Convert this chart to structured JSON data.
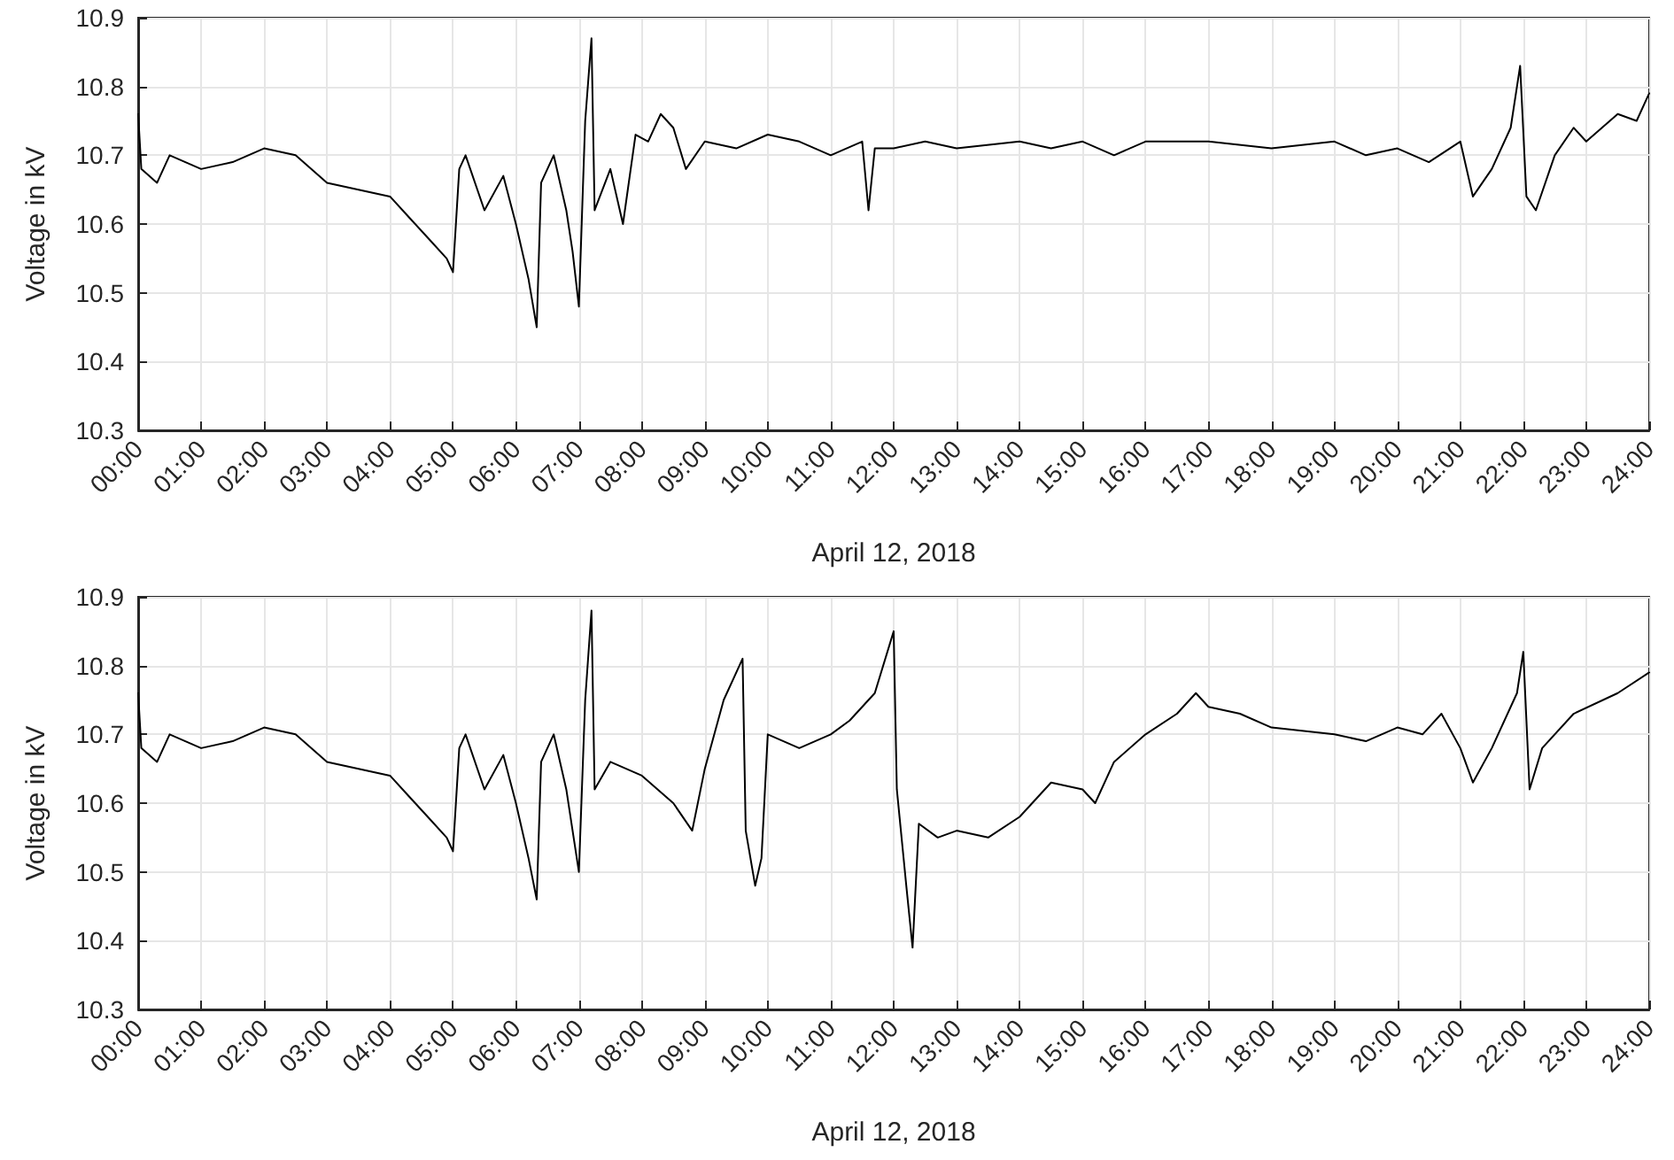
{
  "chart_data": [
    {
      "type": "line",
      "xlabel": "April 12, 2018",
      "ylabel": "Voltage in kV",
      "xlim": [
        0,
        24
      ],
      "ylim": [
        10.3,
        10.9
      ],
      "yticks": [
        10.3,
        10.4,
        10.5,
        10.6,
        10.7,
        10.8,
        10.9
      ],
      "xticks": [
        {
          "value": 0,
          "label": "00:00"
        },
        {
          "value": 1,
          "label": "01:00"
        },
        {
          "value": 2,
          "label": "02:00"
        },
        {
          "value": 3,
          "label": "03:00"
        },
        {
          "value": 4,
          "label": "04:00"
        },
        {
          "value": 5,
          "label": "05:00"
        },
        {
          "value": 6,
          "label": "06:00"
        },
        {
          "value": 7,
          "label": "07:00"
        },
        {
          "value": 8,
          "label": "08:00"
        },
        {
          "value": 9,
          "label": "09:00"
        },
        {
          "value": 10,
          "label": "10:00"
        },
        {
          "value": 11,
          "label": "11:00"
        },
        {
          "value": 12,
          "label": "12:00"
        },
        {
          "value": 13,
          "label": "13:00"
        },
        {
          "value": 14,
          "label": "14:00"
        },
        {
          "value": 15,
          "label": "15:00"
        },
        {
          "value": 16,
          "label": "16:00"
        },
        {
          "value": 17,
          "label": "17:00"
        },
        {
          "value": 18,
          "label": "18:00"
        },
        {
          "value": 19,
          "label": "19:00"
        },
        {
          "value": 20,
          "label": "20:00"
        },
        {
          "value": 21,
          "label": "21:00"
        },
        {
          "value": 22,
          "label": "22:00"
        },
        {
          "value": 23,
          "label": "23:00"
        },
        {
          "value": 24,
          "label": "24:00"
        }
      ],
      "grid": true,
      "marker": "none",
      "line_style": "solid",
      "series": [
        {
          "color": "#000000",
          "x": [
            0,
            0.05,
            0.3,
            0.5,
            1,
            1.5,
            2,
            2.5,
            3,
            3.5,
            4,
            4.3,
            4.6,
            4.9,
            5.0,
            5.1,
            5.2,
            5.5,
            5.8,
            6.0,
            6.2,
            6.33,
            6.4,
            6.6,
            6.8,
            6.9,
            7.0,
            7.1,
            7.2,
            7.25,
            7.5,
            7.7,
            7.9,
            8.1,
            8.3,
            8.5,
            8.7,
            9,
            9.5,
            10,
            10.5,
            11,
            11.5,
            11.6,
            11.7,
            12,
            12.5,
            13,
            14,
            14.5,
            15,
            15.5,
            16,
            17,
            18,
            19,
            19.5,
            20,
            20.5,
            21,
            21.2,
            21.5,
            21.8,
            21.95,
            22.05,
            22.2,
            22.5,
            22.8,
            23,
            23.5,
            23.8,
            24
          ],
          "values": [
            10.76,
            10.68,
            10.66,
            10.7,
            10.68,
            10.69,
            10.71,
            10.7,
            10.66,
            10.65,
            10.64,
            10.61,
            10.58,
            10.55,
            10.53,
            10.68,
            10.7,
            10.62,
            10.67,
            10.6,
            10.52,
            10.45,
            10.66,
            10.7,
            10.62,
            10.56,
            10.48,
            10.75,
            10.87,
            10.62,
            10.68,
            10.6,
            10.73,
            10.72,
            10.76,
            10.74,
            10.68,
            10.72,
            10.71,
            10.73,
            10.72,
            10.7,
            10.72,
            10.62,
            10.71,
            10.71,
            10.72,
            10.71,
            10.72,
            10.71,
            10.72,
            10.7,
            10.72,
            10.72,
            10.71,
            10.72,
            10.7,
            10.71,
            10.69,
            10.72,
            10.64,
            10.68,
            10.74,
            10.83,
            10.64,
            10.62,
            10.7,
            10.74,
            10.72,
            10.76,
            10.75,
            10.79
          ]
        }
      ]
    },
    {
      "type": "line",
      "xlabel": "April 12, 2018",
      "ylabel": "Voltage in kV",
      "xlim": [
        0,
        24
      ],
      "ylim": [
        10.3,
        10.9
      ],
      "yticks": [
        10.3,
        10.4,
        10.5,
        10.6,
        10.7,
        10.8,
        10.9
      ],
      "xticks": [
        {
          "value": 0,
          "label": "00:00"
        },
        {
          "value": 1,
          "label": "01:00"
        },
        {
          "value": 2,
          "label": "02:00"
        },
        {
          "value": 3,
          "label": "03:00"
        },
        {
          "value": 4,
          "label": "04:00"
        },
        {
          "value": 5,
          "label": "05:00"
        },
        {
          "value": 6,
          "label": "06:00"
        },
        {
          "value": 7,
          "label": "07:00"
        },
        {
          "value": 8,
          "label": "08:00"
        },
        {
          "value": 9,
          "label": "09:00"
        },
        {
          "value": 10,
          "label": "10:00"
        },
        {
          "value": 11,
          "label": "11:00"
        },
        {
          "value": 12,
          "label": "12:00"
        },
        {
          "value": 13,
          "label": "13:00"
        },
        {
          "value": 14,
          "label": "14:00"
        },
        {
          "value": 15,
          "label": "15:00"
        },
        {
          "value": 16,
          "label": "16:00"
        },
        {
          "value": 17,
          "label": "17:00"
        },
        {
          "value": 18,
          "label": "18:00"
        },
        {
          "value": 19,
          "label": "19:00"
        },
        {
          "value": 20,
          "label": "20:00"
        },
        {
          "value": 21,
          "label": "21:00"
        },
        {
          "value": 22,
          "label": "22:00"
        },
        {
          "value": 23,
          "label": "23:00"
        },
        {
          "value": 24,
          "label": "24:00"
        }
      ],
      "grid": true,
      "marker": "none",
      "line_style": "solid",
      "series": [
        {
          "color": "#000000",
          "x": [
            0,
            0.05,
            0.3,
            0.5,
            1,
            1.5,
            2,
            2.5,
            3,
            3.5,
            4,
            4.3,
            4.6,
            4.9,
            5.0,
            5.1,
            5.2,
            5.5,
            5.8,
            6.0,
            6.2,
            6.33,
            6.4,
            6.6,
            6.8,
            6.9,
            7.0,
            7.1,
            7.2,
            7.25,
            7.5,
            8,
            8.5,
            8.8,
            9.0,
            9.3,
            9.6,
            9.65,
            9.8,
            9.9,
            10.0,
            10.5,
            11,
            11.3,
            11.7,
            12.0,
            12.05,
            12.2,
            12.3,
            12.4,
            12.7,
            13,
            13.5,
            14,
            14.5,
            15,
            15.2,
            15.5,
            16,
            16.5,
            16.8,
            17,
            17.5,
            18,
            19,
            19.5,
            20,
            20.4,
            20.7,
            21,
            21.2,
            21.5,
            21.9,
            22,
            22.1,
            22.3,
            22.8,
            23.5,
            24
          ],
          "values": [
            10.76,
            10.68,
            10.66,
            10.7,
            10.68,
            10.69,
            10.71,
            10.7,
            10.66,
            10.65,
            10.64,
            10.61,
            10.58,
            10.55,
            10.53,
            10.68,
            10.7,
            10.62,
            10.67,
            10.6,
            10.52,
            10.46,
            10.66,
            10.7,
            10.62,
            10.56,
            10.5,
            10.75,
            10.88,
            10.62,
            10.66,
            10.64,
            10.6,
            10.56,
            10.65,
            10.75,
            10.81,
            10.56,
            10.48,
            10.52,
            10.7,
            10.68,
            10.7,
            10.72,
            10.76,
            10.85,
            10.62,
            10.48,
            10.39,
            10.57,
            10.55,
            10.56,
            10.55,
            10.58,
            10.63,
            10.62,
            10.6,
            10.66,
            10.7,
            10.73,
            10.76,
            10.74,
            10.73,
            10.71,
            10.7,
            10.69,
            10.71,
            10.7,
            10.73,
            10.68,
            10.63,
            10.68,
            10.76,
            10.82,
            10.62,
            10.68,
            10.73,
            10.76,
            10.79
          ]
        }
      ]
    }
  ]
}
